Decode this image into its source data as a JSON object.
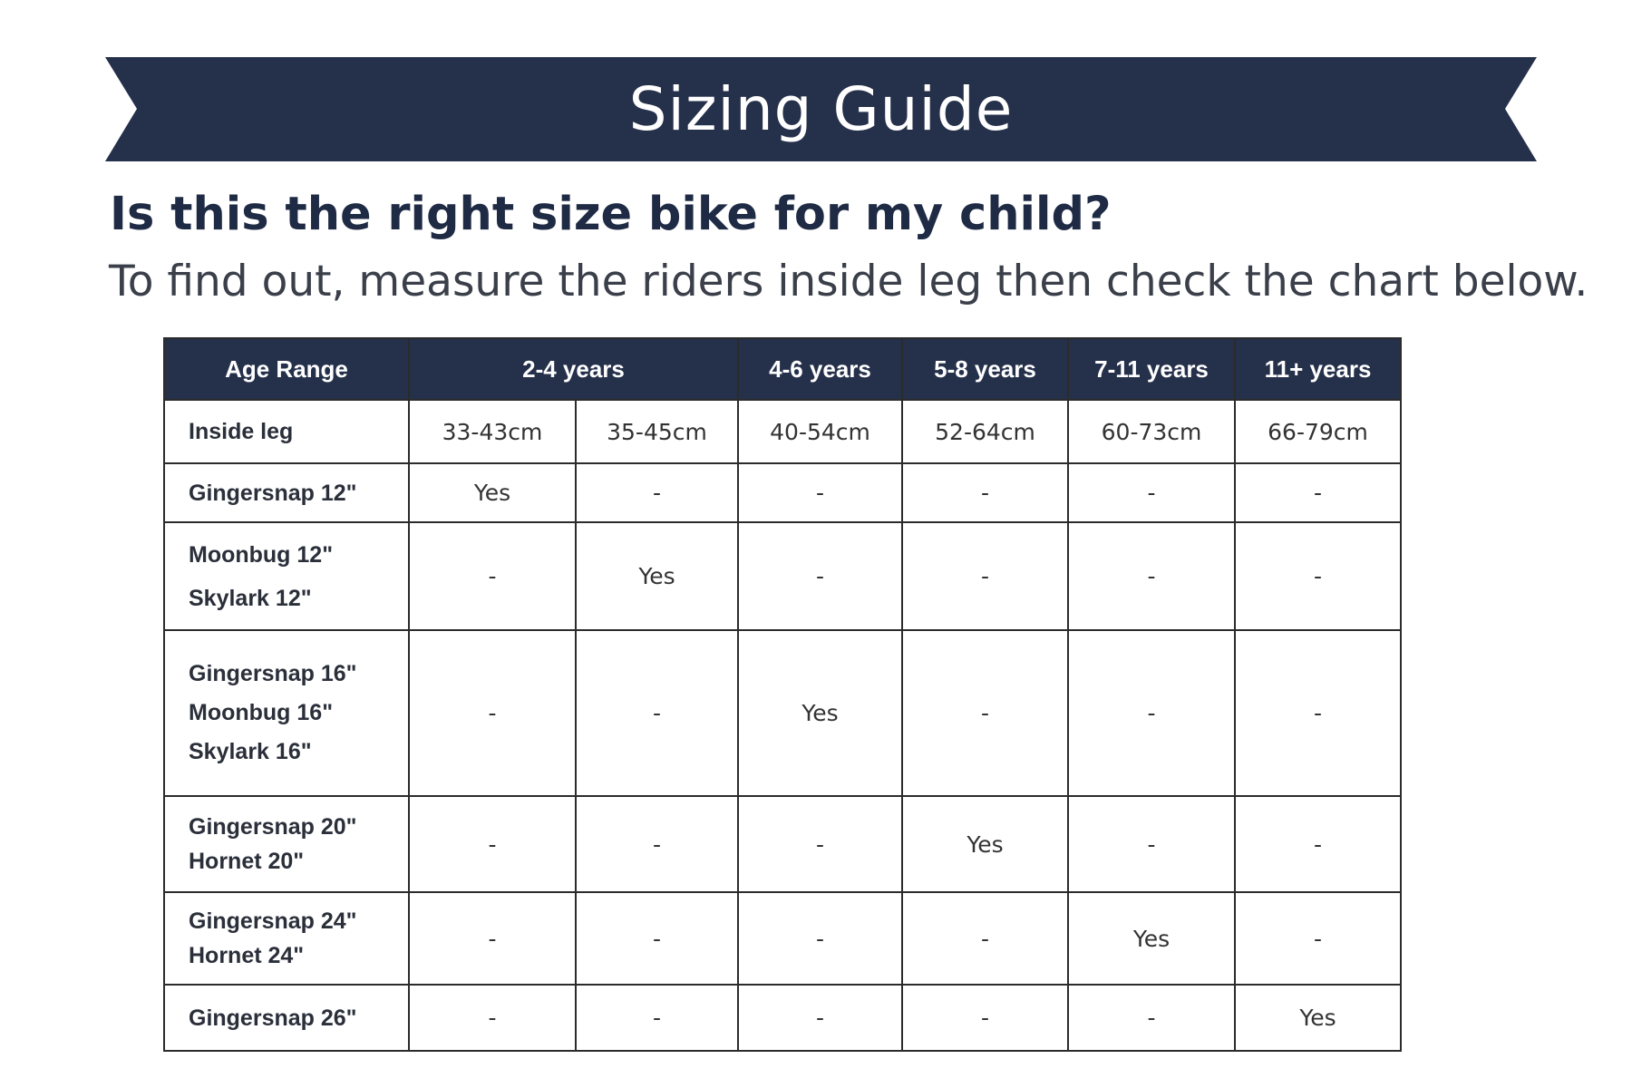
{
  "banner": {
    "title": "Sizing Guide",
    "color": "#25304a"
  },
  "question": "Is this the right size bike for my child?",
  "instruction": "To find out, measure the riders inside leg then check the chart below.",
  "table": {
    "header": {
      "label": "Age Range",
      "ages": [
        "2-4 years",
        "4-6 years",
        "5-8 years",
        "7-11 years",
        "11+ years"
      ]
    },
    "inside_leg": {
      "label": "Inside leg",
      "values": [
        "33-43cm",
        "35-45cm",
        "40-54cm",
        "52-64cm",
        "60-73cm",
        "66-79cm"
      ]
    },
    "rows": [
      {
        "bikes": [
          "Gingersnap 12\""
        ],
        "cells": [
          "Yes",
          "-",
          "-",
          "-",
          "-",
          "-"
        ]
      },
      {
        "bikes": [
          "Moonbug 12\"",
          "Skylark 12\""
        ],
        "cells": [
          "-",
          "Yes",
          "-",
          "-",
          "-",
          "-"
        ]
      },
      {
        "bikes": [
          "Gingersnap 16\"",
          "Moonbug 16\"",
          "Skylark 16\""
        ],
        "cells": [
          "-",
          "-",
          "Yes",
          "-",
          "-",
          "-"
        ]
      },
      {
        "bikes": [
          "Gingersnap 20\"",
          "Hornet 20\""
        ],
        "cells": [
          "-",
          "-",
          "-",
          "Yes",
          "-",
          "-"
        ]
      },
      {
        "bikes": [
          "Gingersnap 24\"",
          "Hornet 24\""
        ],
        "cells": [
          "-",
          "-",
          "-",
          "-",
          "Yes",
          "-"
        ]
      },
      {
        "bikes": [
          "Gingersnap 26\""
        ],
        "cells": [
          "-",
          "-",
          "-",
          "-",
          "-",
          "Yes"
        ]
      }
    ]
  }
}
